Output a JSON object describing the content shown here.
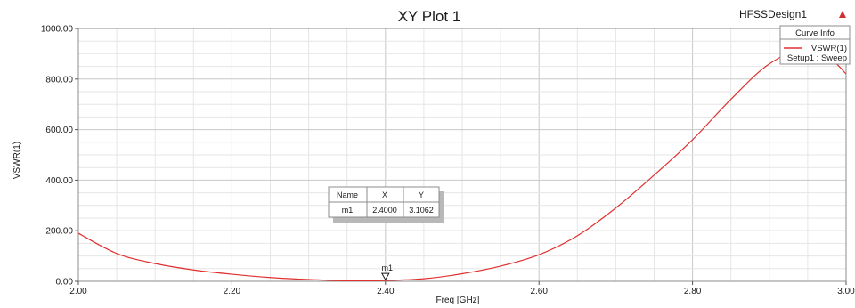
{
  "header": {
    "title": "XY Plot 1",
    "design_name": "HFSSDesign1",
    "logo_color": "#d03030"
  },
  "legend": {
    "title": "Curve Info",
    "entries": [
      {
        "name": "VSWR(1)",
        "subtitle": "Setup1 : Sweep",
        "color": "#e03030"
      }
    ]
  },
  "marker_table": {
    "headers": [
      "Name",
      "X",
      "Y"
    ],
    "rows": [
      [
        "m1",
        "2.4000",
        "3.1062"
      ]
    ]
  },
  "marker": {
    "label": "m1",
    "x": 2.4,
    "y": 3.1062
  },
  "chart_data": {
    "type": "line",
    "title": "XY Plot 1",
    "xlabel": "Freq [GHz]",
    "ylabel": "VSWR(1)",
    "xlim": [
      2.0,
      3.0
    ],
    "ylim": [
      0,
      1000
    ],
    "xticks": [
      2.0,
      2.2,
      2.4,
      2.6,
      2.8,
      3.0
    ],
    "xtick_labels": [
      "2.00",
      "2.20",
      "2.40",
      "2.60",
      "2.80",
      "3.00"
    ],
    "yticks": [
      0,
      200,
      400,
      600,
      800,
      1000
    ],
    "ytick_labels": [
      "0.00",
      "200.00",
      "400.00",
      "600.00",
      "800.00",
      "1000.00"
    ],
    "grid": true,
    "legend_position": "top-right",
    "series": [
      {
        "name": "VSWR(1)",
        "color": "#e03030",
        "x": [
          2.0,
          2.05,
          2.1,
          2.15,
          2.2,
          2.25,
          2.3,
          2.35,
          2.4,
          2.45,
          2.5,
          2.55,
          2.6,
          2.65,
          2.7,
          2.75,
          2.8,
          2.85,
          2.9,
          2.95,
          2.98,
          3.0
        ],
        "y": [
          190,
          110,
          70,
          45,
          28,
          15,
          7,
          2,
          3.1,
          10,
          30,
          60,
          105,
          180,
          290,
          420,
          560,
          720,
          860,
          925,
          880,
          820
        ]
      }
    ]
  }
}
